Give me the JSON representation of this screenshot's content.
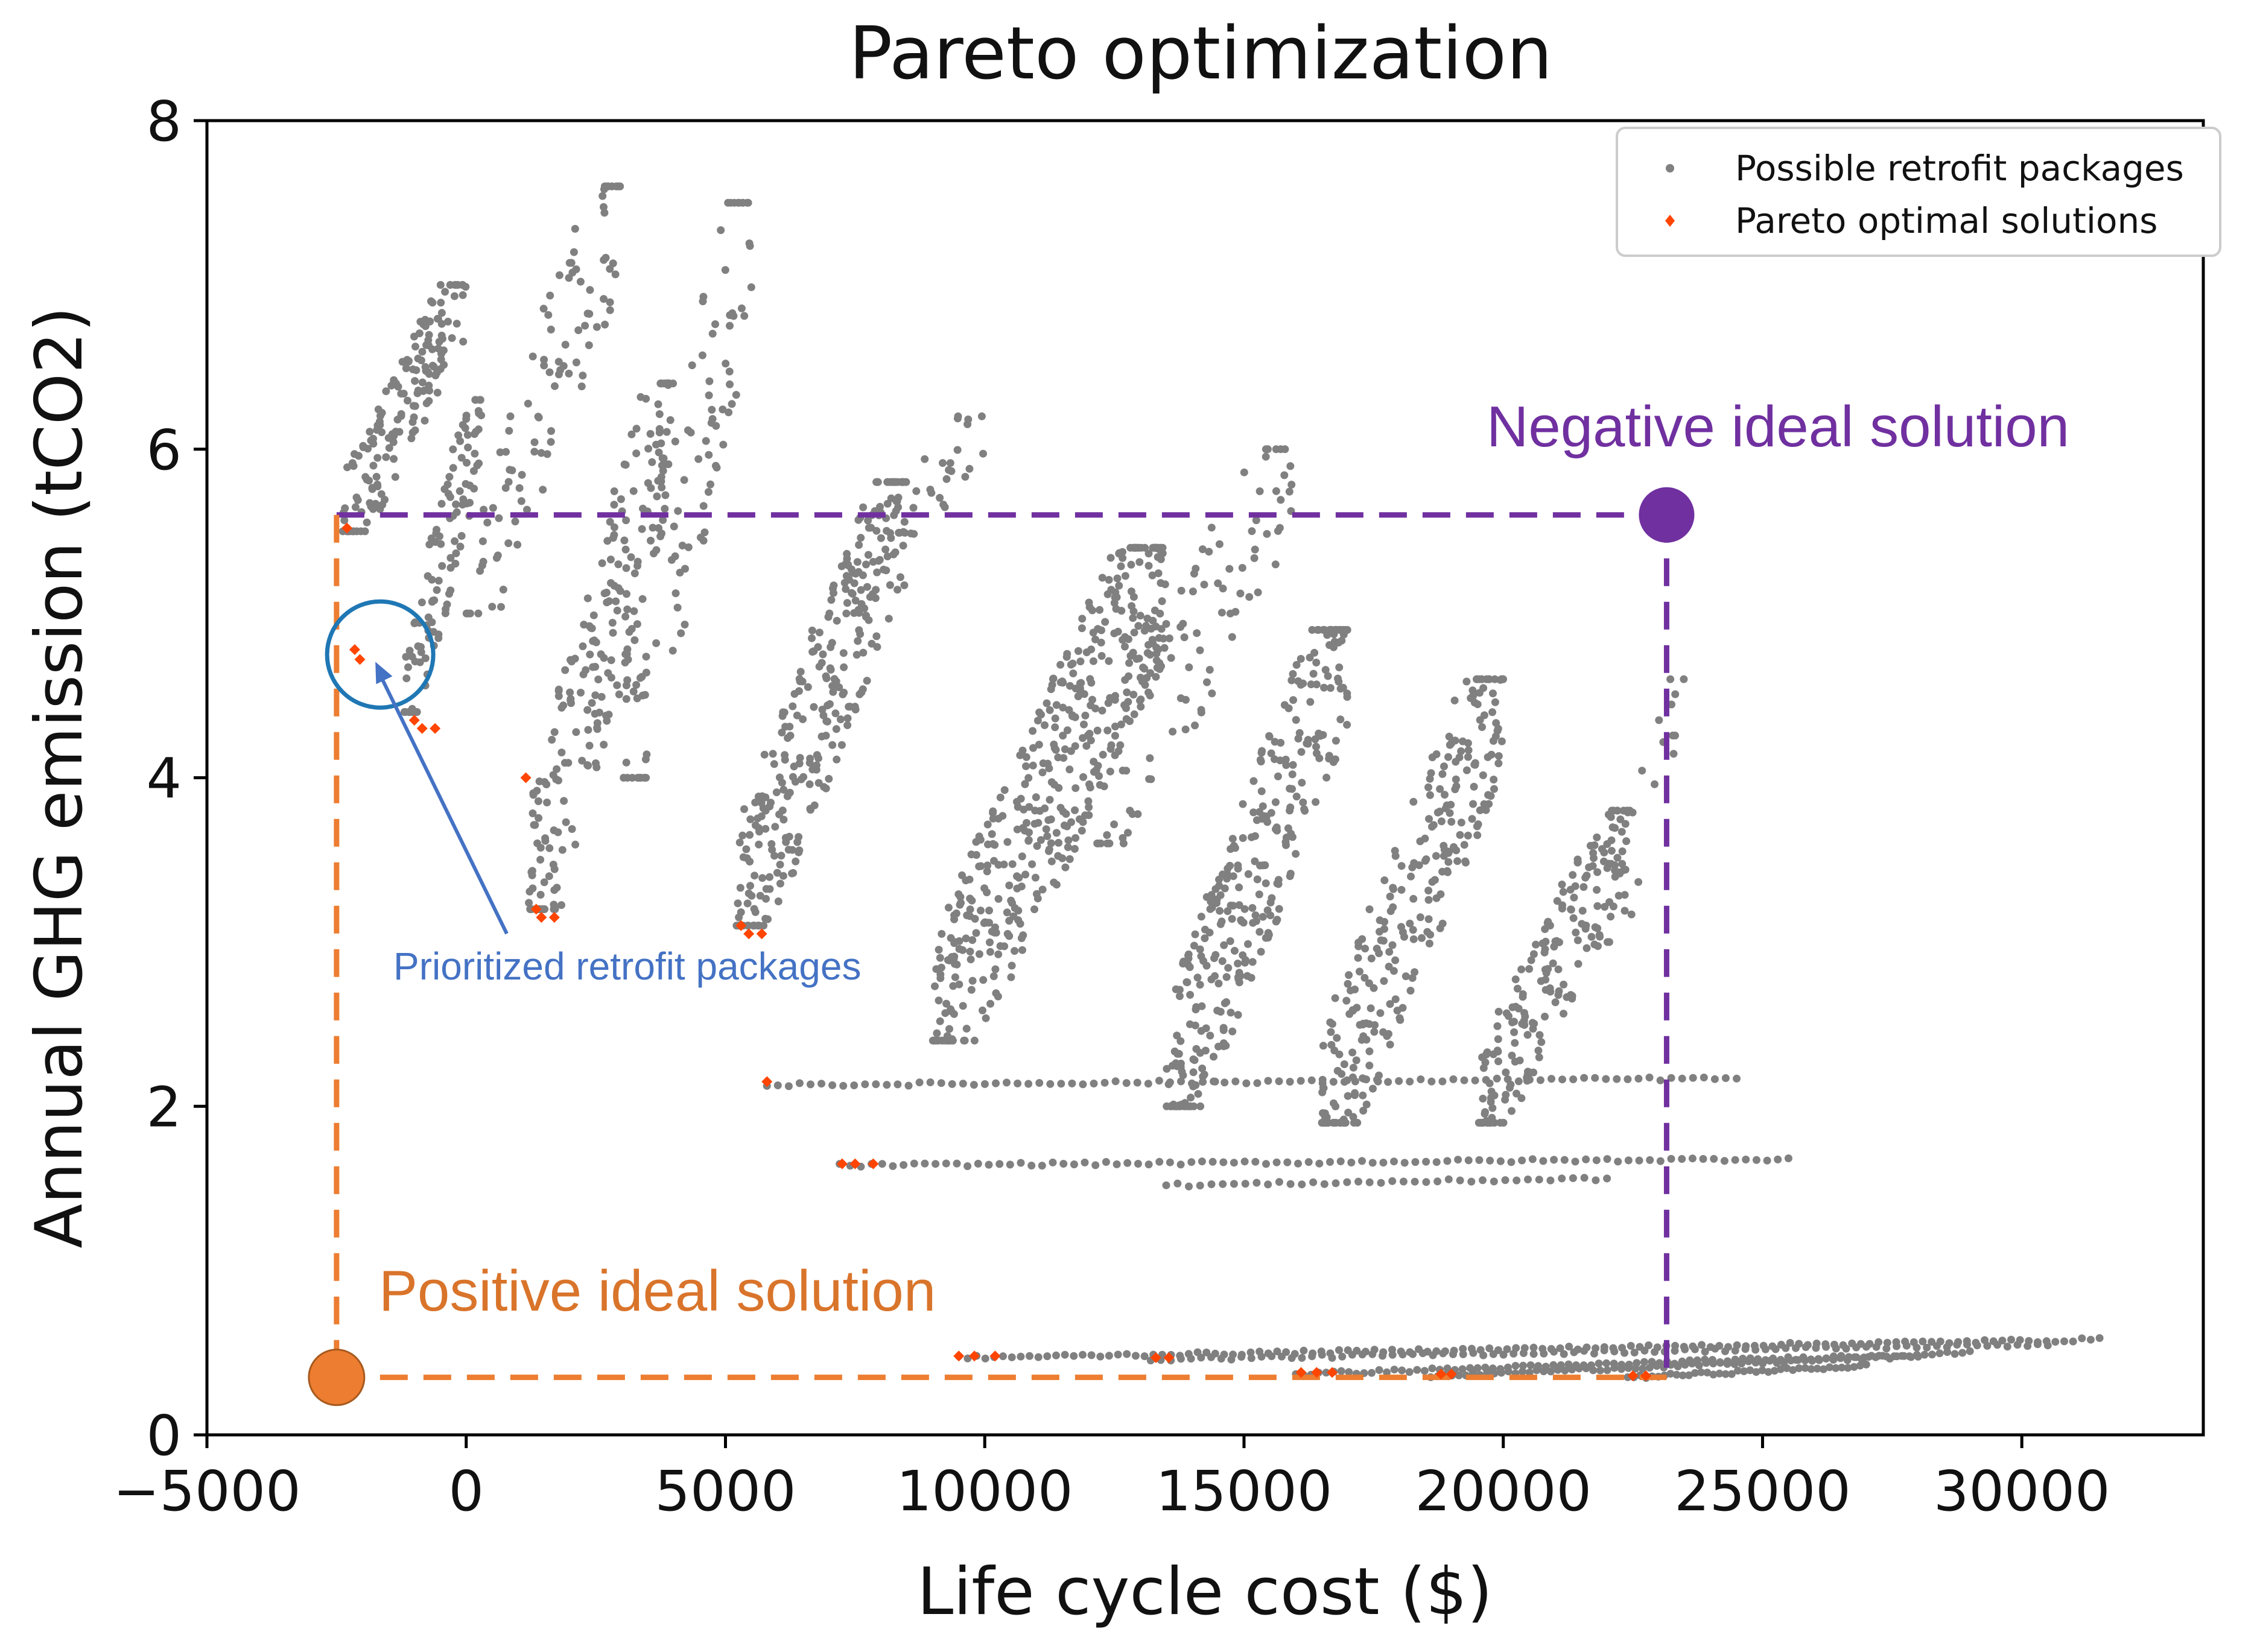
{
  "chart_data": {
    "type": "scatter",
    "title": "Pareto optimization",
    "xlabel": "Life cycle cost ($)",
    "ylabel": "Annual GHG emission (tCO2)",
    "xlim": [
      -5000,
      33500
    ],
    "ylim": [
      0,
      8
    ],
    "xticks": [
      -5000,
      0,
      5000,
      10000,
      15000,
      20000,
      25000,
      30000
    ],
    "xtick_labels": [
      "−5000",
      "0",
      "5000",
      "10000",
      "15000",
      "20000",
      "25000",
      "30000"
    ],
    "yticks": [
      0,
      2,
      4,
      6,
      8
    ],
    "ytick_labels": [
      "0",
      "2",
      "4",
      "6",
      "8"
    ],
    "grid": false,
    "legend": {
      "placement": "top-right",
      "entries": [
        "Possible retrofit packages",
        "Pareto optimal solutions"
      ]
    },
    "colors": {
      "possible": "#808080",
      "pareto": "#ff4500",
      "negative_ideal": "#7030a0",
      "positive_ideal": "#ed7d31",
      "prioritized": "#1f77b4",
      "prioritized_text": "#4472c4"
    },
    "series": [
      {
        "name": "Possible retrofit packages",
        "marker": "dot",
        "clusters": [
          {
            "x": [
              -2400,
              0
            ],
            "y": [
              5.5,
              7.0
            ],
            "n": 160
          },
          {
            "x": [
              -1200,
              300
            ],
            "y": [
              4.4,
              6.3
            ],
            "n": 110
          },
          {
            "x": [
              0,
              3000
            ],
            "y": [
              5.0,
              7.6
            ],
            "n": 100
          },
          {
            "x": [
              1200,
              4000
            ],
            "y": [
              3.2,
              6.4
            ],
            "n": 220
          },
          {
            "x": [
              3000,
              5500
            ],
            "y": [
              4.0,
              7.5
            ],
            "n": 100
          },
          {
            "x": [
              5200,
              8500
            ],
            "y": [
              3.1,
              5.8
            ],
            "n": 280
          },
          {
            "x": [
              7000,
              10000
            ],
            "y": [
              5.0,
              6.2
            ],
            "n": 50
          },
          {
            "x": [
              9000,
              13500
            ],
            "y": [
              2.4,
              5.4
            ],
            "n": 450
          },
          {
            "x": [
              12000,
              16000
            ],
            "y": [
              3.6,
              6.0
            ],
            "n": 100
          },
          {
            "x": [
              13500,
              17000
            ],
            "y": [
              2.0,
              4.9
            ],
            "n": 320
          },
          {
            "x": [
              16500,
              20000
            ],
            "y": [
              1.9,
              4.6
            ],
            "n": 280
          },
          {
            "x": [
              19500,
              22500
            ],
            "y": [
              1.9,
              3.8
            ],
            "n": 200
          },
          {
            "x": [
              22000,
              23500
            ],
            "y": [
              3.0,
              4.6
            ],
            "n": 20
          }
        ],
        "bands": [
          {
            "x": [
              5800,
              24500
            ],
            "y": [
              2.13,
              2.17
            ],
            "n": 90
          },
          {
            "x": [
              7200,
              25500
            ],
            "y": [
              1.64,
              1.68
            ],
            "n": 90
          },
          {
            "x": [
              13500,
              22000
            ],
            "y": [
              1.52,
              1.56
            ],
            "n": 40
          },
          {
            "x": [
              9500,
              31500
            ],
            "y": [
              0.47,
              0.58
            ],
            "n": 130
          },
          {
            "x": [
              13200,
              30500
            ],
            "y": [
              0.46,
              0.55
            ],
            "n": 90
          },
          {
            "x": [
              16000,
              29000
            ],
            "y": [
              0.37,
              0.5
            ],
            "n": 90
          },
          {
            "x": [
              18600,
              28000
            ],
            "y": [
              0.36,
              0.48
            ],
            "n": 70
          },
          {
            "x": [
              22400,
              27000
            ],
            "y": [
              0.35,
              0.42
            ],
            "n": 40
          }
        ]
      },
      {
        "name": "Pareto optimal solutions",
        "marker": "diamond",
        "points": [
          {
            "x": -2300,
            "y": 5.52
          },
          {
            "x": -2150,
            "y": 4.78
          },
          {
            "x": -2050,
            "y": 4.72
          },
          {
            "x": -1000,
            "y": 4.35
          },
          {
            "x": -850,
            "y": 4.3
          },
          {
            "x": -600,
            "y": 4.3
          },
          {
            "x": 1150,
            "y": 4.0
          },
          {
            "x": 1350,
            "y": 3.2
          },
          {
            "x": 1450,
            "y": 3.15
          },
          {
            "x": 1700,
            "y": 3.15
          },
          {
            "x": 5300,
            "y": 3.1
          },
          {
            "x": 5450,
            "y": 3.05
          },
          {
            "x": 5700,
            "y": 3.05
          },
          {
            "x": 5800,
            "y": 2.15
          },
          {
            "x": 7250,
            "y": 1.65
          },
          {
            "x": 7500,
            "y": 1.65
          },
          {
            "x": 7850,
            "y": 1.65
          },
          {
            "x": 9500,
            "y": 0.48
          },
          {
            "x": 9800,
            "y": 0.48
          },
          {
            "x": 10200,
            "y": 0.48
          },
          {
            "x": 13300,
            "y": 0.47
          },
          {
            "x": 13550,
            "y": 0.47
          },
          {
            "x": 16100,
            "y": 0.38
          },
          {
            "x": 16400,
            "y": 0.38
          },
          {
            "x": 16700,
            "y": 0.38
          },
          {
            "x": 18800,
            "y": 0.37
          },
          {
            "x": 19000,
            "y": 0.37
          },
          {
            "x": 22500,
            "y": 0.36
          },
          {
            "x": 22750,
            "y": 0.36
          }
        ]
      }
    ],
    "annotations": {
      "negative_ideal": {
        "text": "Negative ideal solution",
        "x": 23150,
        "y": 5.6
      },
      "positive_ideal": {
        "text": "Positive ideal solution",
        "x": -2500,
        "y": 0.35
      },
      "prioritized": {
        "text": "Prioritized retrofit packages",
        "x": -1950,
        "y": 4.75
      }
    }
  }
}
